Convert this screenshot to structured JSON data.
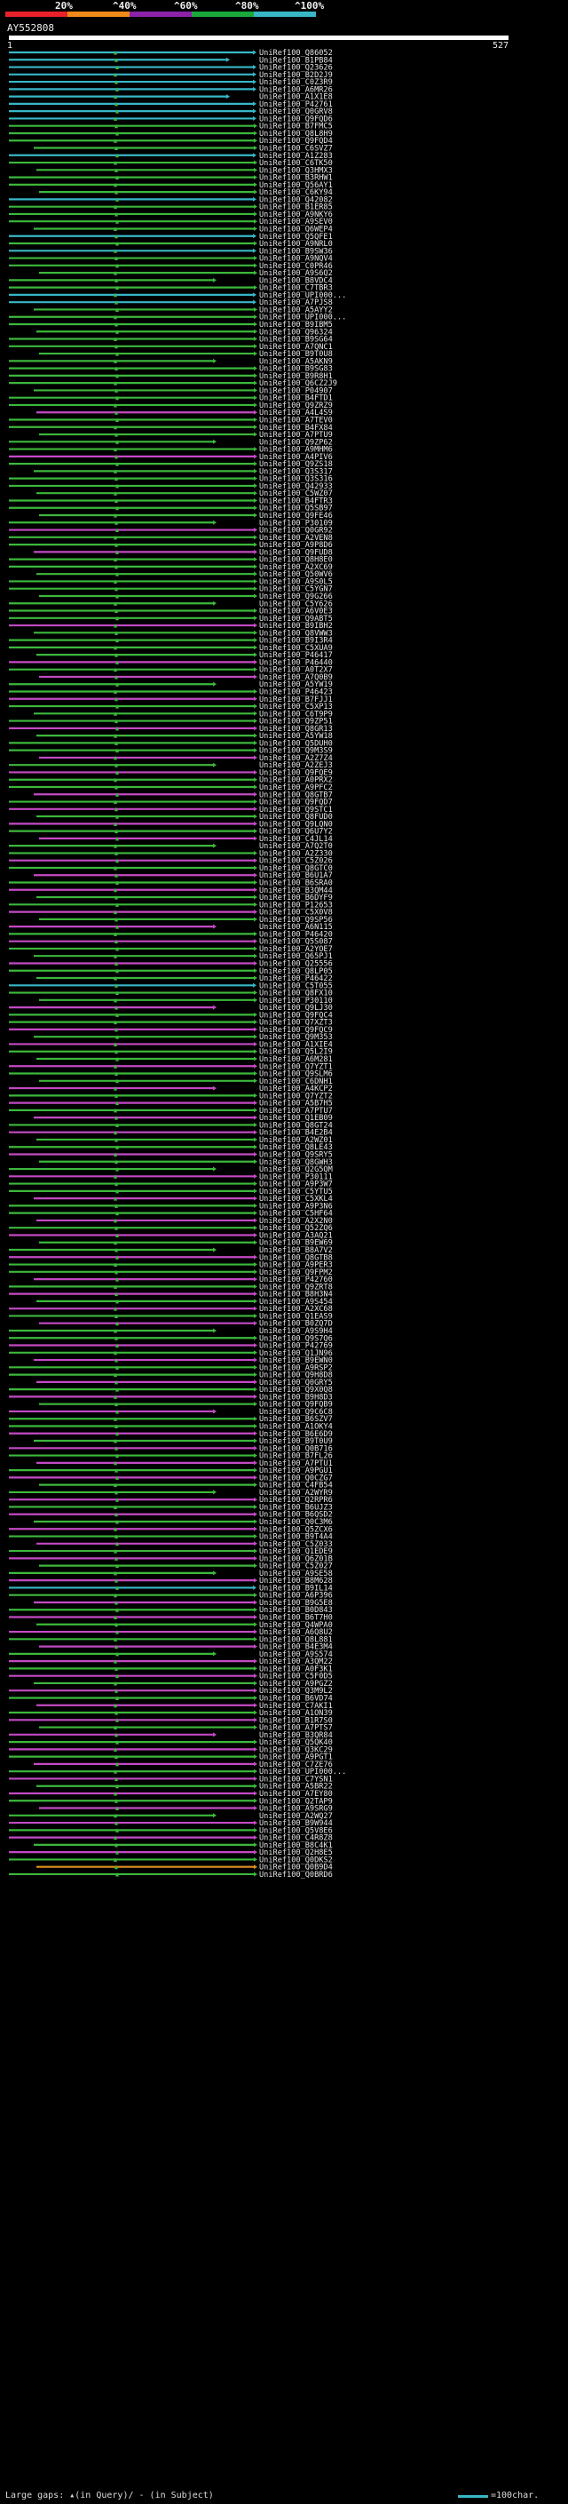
{
  "legend": {
    "ticks": [
      "20%",
      "^40%",
      "^60%",
      "^80%",
      "^100%"
    ],
    "colors": [
      "#e8212b",
      "#f08a18",
      "#8b22a8",
      "#1aa83b",
      "#38b7c7"
    ]
  },
  "query": {
    "name": "AY552808",
    "start": "1",
    "end": "527"
  },
  "colors": {
    "cyan": "#38b7c7",
    "green": "#3cb83c",
    "magenta": "#c44ac4",
    "orange": "#e0901f"
  },
  "hits": [
    {
      "id": "UniRef100_Q86052",
      "c": "cyan"
    },
    {
      "id": "UniRef100_B1PB84",
      "c": "cyan"
    },
    {
      "id": "UniRef100_Q23626",
      "c": "cyan"
    },
    {
      "id": "UniRef100_B2D2J9",
      "c": "cyan"
    },
    {
      "id": "UniRef100_C0Z3R9",
      "c": "cyan"
    },
    {
      "id": "UniRef100_A6MR26",
      "c": "cyan"
    },
    {
      "id": "UniRef100_A1X1E8",
      "c": "cyan"
    },
    {
      "id": "UniRef100_P42761",
      "c": "cyan"
    },
    {
      "id": "UniRef100_Q0GRV8",
      "c": "cyan"
    },
    {
      "id": "UniRef100_Q9FQD6",
      "c": "cyan"
    },
    {
      "id": "UniRef100_B7FMC5",
      "c": "green"
    },
    {
      "id": "UniRef100_Q8L8H9",
      "c": "green"
    },
    {
      "id": "UniRef100_Q9FQD4",
      "c": "green"
    },
    {
      "id": "UniRef100_C6SVZ7",
      "c": "green"
    },
    {
      "id": "UniRef100_A1Z283",
      "c": "cyan"
    },
    {
      "id": "UniRef100_C6TK50",
      "c": "green"
    },
    {
      "id": "UniRef100_Q3HMX3",
      "c": "green"
    },
    {
      "id": "UniRef100_B3RHW1",
      "c": "green"
    },
    {
      "id": "UniRef100_Q56AY1",
      "c": "green"
    },
    {
      "id": "UniRef100_C6KY94",
      "c": "green"
    },
    {
      "id": "UniRef100_Q42082",
      "c": "cyan"
    },
    {
      "id": "UniRef100_B1ER85",
      "c": "green"
    },
    {
      "id": "UniRef100_A9NKY6",
      "c": "green"
    },
    {
      "id": "UniRef100_A9SEV0",
      "c": "green"
    },
    {
      "id": "UniRef100_Q6WEP4",
      "c": "green"
    },
    {
      "id": "UniRef100_Q5QFE1",
      "c": "cyan"
    },
    {
      "id": "UniRef100_A9NRL0",
      "c": "green"
    },
    {
      "id": "UniRef100_B9SW36",
      "c": "cyan"
    },
    {
      "id": "UniRef100_A9NQV4",
      "c": "green"
    },
    {
      "id": "UniRef100_C0PR46",
      "c": "green"
    },
    {
      "id": "UniRef100_A9S6Q2",
      "c": "green"
    },
    {
      "id": "UniRef100_B8VDC4",
      "c": "green"
    },
    {
      "id": "UniRef100_C7TBR3",
      "c": "green"
    },
    {
      "id": "UniRef100_UPI000...",
      "c": "cyan"
    },
    {
      "id": "UniRef100_A7PJS8",
      "c": "cyan"
    },
    {
      "id": "UniRef100_A5AYY2",
      "c": "green"
    },
    {
      "id": "UniRef100_UPI000...",
      "c": "green"
    },
    {
      "id": "UniRef100_B9IBM5",
      "c": "green"
    },
    {
      "id": "UniRef100_Q96324",
      "c": "green"
    },
    {
      "id": "UniRef100_B9SG64",
      "c": "green"
    },
    {
      "id": "UniRef100_A7QNC1",
      "c": "green"
    },
    {
      "id": "UniRef100_B9T0U8",
      "c": "green"
    },
    {
      "id": "UniRef100_A5AKN9",
      "c": "green"
    },
    {
      "id": "UniRef100_B9SG83",
      "c": "green"
    },
    {
      "id": "UniRef100_B9R8H1",
      "c": "green"
    },
    {
      "id": "UniRef100_Q6CZ2J9",
      "c": "green"
    },
    {
      "id": "UniRef100_P04907",
      "c": "green"
    },
    {
      "id": "UniRef100_B4FTD1",
      "c": "green"
    },
    {
      "id": "UniRef100_Q9ZRZ9",
      "c": "green"
    },
    {
      "id": "UniRef100_A4L4S9",
      "c": "magenta"
    },
    {
      "id": "UniRef100_A7TEV0",
      "c": "green"
    },
    {
      "id": "UniRef100_B4FX84",
      "c": "green"
    },
    {
      "id": "UniRef100_A7PTU9",
      "c": "green"
    },
    {
      "id": "UniRef100_Q9ZP62",
      "c": "green"
    },
    {
      "id": "UniRef100_A9MHM6",
      "c": "green"
    },
    {
      "id": "UniRef100_A4PIV6",
      "c": "magenta"
    },
    {
      "id": "UniRef100_Q9ZS18",
      "c": "green"
    },
    {
      "id": "UniRef100_Q3S317",
      "c": "green"
    },
    {
      "id": "UniRef100_Q3S316",
      "c": "green"
    },
    {
      "id": "UniRef100_Q42933",
      "c": "green"
    },
    {
      "id": "UniRef100_C5WZ07",
      "c": "green"
    },
    {
      "id": "UniRef100_B4FTR3",
      "c": "green"
    },
    {
      "id": "UniRef100_Q5SB97",
      "c": "green"
    },
    {
      "id": "UniRef100_Q9FE46",
      "c": "green"
    },
    {
      "id": "UniRef100_P30109",
      "c": "green"
    },
    {
      "id": "UniRef100_Q0GR92",
      "c": "magenta"
    },
    {
      "id": "UniRef100_A2VEN8",
      "c": "green"
    },
    {
      "id": "UniRef100_A9P8D6",
      "c": "green"
    },
    {
      "id": "UniRef100_Q9FUD8",
      "c": "magenta"
    },
    {
      "id": "UniRef100_Q8H8E0",
      "c": "green"
    },
    {
      "id": "UniRef100_A2XC69",
      "c": "green"
    },
    {
      "id": "UniRef100_Q50WV6",
      "c": "green"
    },
    {
      "id": "UniRef100_A9S0L5",
      "c": "green"
    },
    {
      "id": "UniRef100_C5YGN7",
      "c": "green"
    },
    {
      "id": "UniRef100_Q9G266",
      "c": "green"
    },
    {
      "id": "UniRef100_C5Y626",
      "c": "green"
    },
    {
      "id": "UniRef100_A6V0E3",
      "c": "green"
    },
    {
      "id": "UniRef100_Q9ABT5",
      "c": "green"
    },
    {
      "id": "UniRef100_B9IBH2",
      "c": "magenta"
    },
    {
      "id": "UniRef100_Q8VWW3",
      "c": "green"
    },
    {
      "id": "UniRef100_B9I3R4",
      "c": "green"
    },
    {
      "id": "UniRef100_C5XUA9",
      "c": "green"
    },
    {
      "id": "UniRef100_P46417",
      "c": "green"
    },
    {
      "id": "UniRef100_P46440",
      "c": "magenta"
    },
    {
      "id": "UniRef100_A0T2X7",
      "c": "green"
    },
    {
      "id": "UniRef100_A7Q0B9",
      "c": "magenta"
    },
    {
      "id": "UniRef100_A5YW19",
      "c": "green"
    },
    {
      "id": "UniRef100_P46423",
      "c": "green"
    },
    {
      "id": "UniRef100_B7FJJ1",
      "c": "magenta"
    },
    {
      "id": "UniRef100_C5XP13",
      "c": "green"
    },
    {
      "id": "UniRef100_C6T9P9",
      "c": "green"
    },
    {
      "id": "UniRef100_Q9ZP51",
      "c": "green"
    },
    {
      "id": "UniRef100_Q8GR13",
      "c": "magenta"
    },
    {
      "id": "UniRef100_A5YW18",
      "c": "green"
    },
    {
      "id": "UniRef100_Q5DUH0",
      "c": "green"
    },
    {
      "id": "UniRef100_Q9M3S9",
      "c": "green"
    },
    {
      "id": "UniRef100_A2Z7Z4",
      "c": "magenta"
    },
    {
      "id": "UniRef100_A2ZEJ3",
      "c": "green"
    },
    {
      "id": "UniRef100_Q9FQE9",
      "c": "magenta"
    },
    {
      "id": "UniRef100_A0PRX2",
      "c": "green"
    },
    {
      "id": "UniRef100_A9PFC2",
      "c": "green"
    },
    {
      "id": "UniRef100_Q8GTB7",
      "c": "magenta"
    },
    {
      "id": "UniRef100_Q9FQD7",
      "c": "green"
    },
    {
      "id": "UniRef100_Q9STC1",
      "c": "magenta"
    },
    {
      "id": "UniRef100_Q8FUD0",
      "c": "green"
    },
    {
      "id": "UniRef100_Q9LQN0",
      "c": "magenta"
    },
    {
      "id": "UniRef100_Q6U7Y2",
      "c": "green"
    },
    {
      "id": "UniRef100_C4JL14",
      "c": "magenta"
    },
    {
      "id": "UniRef100_A7Q2T0",
      "c": "green"
    },
    {
      "id": "UniRef100_A2Z330",
      "c": "green"
    },
    {
      "id": "UniRef100_C5Z026",
      "c": "magenta"
    },
    {
      "id": "UniRef100_Q8GTC0",
      "c": "green"
    },
    {
      "id": "UniRef100_B6U1A7",
      "c": "magenta"
    },
    {
      "id": "UniRef100_B6SRA0",
      "c": "green"
    },
    {
      "id": "UniRef100_B3QM44",
      "c": "magenta"
    },
    {
      "id": "UniRef100_B6DYF9",
      "c": "green"
    },
    {
      "id": "UniRef100_P12653",
      "c": "green"
    },
    {
      "id": "UniRef100_C5X0V8",
      "c": "magenta"
    },
    {
      "id": "UniRef100_Q9SP56",
      "c": "green"
    },
    {
      "id": "UniRef100_A6N115",
      "c": "magenta"
    },
    {
      "id": "UniRef100_P46420",
      "c": "green"
    },
    {
      "id": "UniRef100_Q5S087",
      "c": "magenta"
    },
    {
      "id": "UniRef100_A2YOE7",
      "c": "green"
    },
    {
      "id": "UniRef100_Q65PJ1",
      "c": "green"
    },
    {
      "id": "UniRef100_Q25556",
      "c": "magenta"
    },
    {
      "id": "UniRef100_Q8LP05",
      "c": "green"
    },
    {
      "id": "UniRef100_P46422",
      "c": "green"
    },
    {
      "id": "UniRef100_C5T055",
      "c": "cyan"
    },
    {
      "id": "UniRef100_Q8FX10",
      "c": "green"
    },
    {
      "id": "UniRef100_P30110",
      "c": "green"
    },
    {
      "id": "UniRef100_Q9LJ30",
      "c": "magenta"
    },
    {
      "id": "UniRef100_Q9FQC4",
      "c": "green"
    },
    {
      "id": "UniRef100_Q7XZT3",
      "c": "green"
    },
    {
      "id": "UniRef100_Q9FQC9",
      "c": "magenta"
    },
    {
      "id": "UniRef100_Q9M353",
      "c": "green"
    },
    {
      "id": "UniRef100_A1XIE4",
      "c": "magenta"
    },
    {
      "id": "UniRef100_Q5L2I9",
      "c": "green"
    },
    {
      "id": "UniRef100_A6M281",
      "c": "green"
    },
    {
      "id": "UniRef100_Q7YZT1",
      "c": "magenta"
    },
    {
      "id": "UniRef100_Q9SLM6",
      "c": "green"
    },
    {
      "id": "UniRef100_C6DNH1",
      "c": "green"
    },
    {
      "id": "UniRef100_A4KCP2",
      "c": "magenta"
    },
    {
      "id": "UniRef100_Q7YZT2",
      "c": "green"
    },
    {
      "id": "UniRef100_A5B7H5",
      "c": "magenta"
    },
    {
      "id": "UniRef100_A7PTU7",
      "c": "green"
    },
    {
      "id": "UniRef100_Q1EB09",
      "c": "magenta"
    },
    {
      "id": "UniRef100_Q8GT24",
      "c": "green"
    },
    {
      "id": "UniRef100_B4E2B4",
      "c": "magenta"
    },
    {
      "id": "UniRef100_A2WZ01",
      "c": "green"
    },
    {
      "id": "UniRef100_Q8LE43",
      "c": "green"
    },
    {
      "id": "UniRef100_Q9SRY5",
      "c": "magenta"
    },
    {
      "id": "UniRef100_Q8GWH3",
      "c": "green"
    },
    {
      "id": "UniRef100_Q2G5QM",
      "c": "green"
    },
    {
      "id": "UniRef100_P30111",
      "c": "magenta"
    },
    {
      "id": "UniRef100_A9P3W7",
      "c": "green"
    },
    {
      "id": "UniRef100_C5YTU5",
      "c": "green"
    },
    {
      "id": "UniRef100_C5XKL4",
      "c": "magenta"
    },
    {
      "id": "UniRef100_A9P3N6",
      "c": "green"
    },
    {
      "id": "UniRef100_C5HF64",
      "c": "green"
    },
    {
      "id": "UniRef100_A2X2N0",
      "c": "magenta"
    },
    {
      "id": "UniRef100_Q52ZQ6",
      "c": "green"
    },
    {
      "id": "UniRef100_A3AQ21",
      "c": "magenta"
    },
    {
      "id": "UniRef100_B9EW69",
      "c": "green"
    },
    {
      "id": "UniRef100_B8A7V2",
      "c": "green"
    },
    {
      "id": "UniRef100_Q8GTB8",
      "c": "magenta"
    },
    {
      "id": "UniRef100_A9PER3",
      "c": "green"
    },
    {
      "id": "UniRef100_Q9FPM2",
      "c": "green"
    },
    {
      "id": "UniRef100_P42760",
      "c": "magenta"
    },
    {
      "id": "UniRef100_Q9ZRT8",
      "c": "green"
    },
    {
      "id": "UniRef100_B8H3N4",
      "c": "magenta"
    },
    {
      "id": "UniRef100_A9S454",
      "c": "green"
    },
    {
      "id": "UniRef100_A2XC68",
      "c": "magenta"
    },
    {
      "id": "UniRef100_Q1EAS9",
      "c": "green"
    },
    {
      "id": "UniRef100_B0ZQ7D",
      "c": "magenta"
    },
    {
      "id": "UniRef100_A9S9H4",
      "c": "green"
    },
    {
      "id": "UniRef100_Q9S7Q6",
      "c": "green"
    },
    {
      "id": "UniRef100_P42769",
      "c": "magenta"
    },
    {
      "id": "UniRef100_Q1JN96",
      "c": "green"
    },
    {
      "id": "UniRef100_B9EWN0",
      "c": "magenta"
    },
    {
      "id": "UniRef100_A9RSP2",
      "c": "green"
    },
    {
      "id": "UniRef100_Q9H8D8",
      "c": "green"
    },
    {
      "id": "UniRef100_Q0GRY5",
      "c": "magenta"
    },
    {
      "id": "UniRef100_Q9X0Q8",
      "c": "green"
    },
    {
      "id": "UniRef100_B9H8D3",
      "c": "magenta"
    },
    {
      "id": "UniRef100_Q9FQB9",
      "c": "green"
    },
    {
      "id": "UniRef100_Q9C6C8",
      "c": "magenta"
    },
    {
      "id": "UniRef100_B6SZV7",
      "c": "green"
    },
    {
      "id": "UniRef100_A1OKY4",
      "c": "green"
    },
    {
      "id": "UniRef100_B6E6D9",
      "c": "magenta"
    },
    {
      "id": "UniRef100_B9T0U9",
      "c": "green"
    },
    {
      "id": "UniRef100_Q0B716",
      "c": "magenta"
    },
    {
      "id": "UniRef100_B7FL26",
      "c": "green"
    },
    {
      "id": "UniRef100_A7PTU1",
      "c": "magenta"
    },
    {
      "id": "UniRef100_A9PGU1",
      "c": "green"
    },
    {
      "id": "UniRef100_Q0CZG7",
      "c": "magenta"
    },
    {
      "id": "UniRef100_C4FB54",
      "c": "green"
    },
    {
      "id": "UniRef100_A2WYR9",
      "c": "green"
    },
    {
      "id": "UniRef100_Q2RPR6",
      "c": "magenta"
    },
    {
      "id": "UniRef100_B6UJZ3",
      "c": "green"
    },
    {
      "id": "UniRef100_B6QSD2",
      "c": "magenta"
    },
    {
      "id": "UniRef100_Q0C3M6",
      "c": "green"
    },
    {
      "id": "UniRef100_Q5ZCX6",
      "c": "magenta"
    },
    {
      "id": "UniRef100_B9T4A4",
      "c": "green"
    },
    {
      "id": "UniRef100_C5Z033",
      "c": "magenta"
    },
    {
      "id": "UniRef100_Q1EDE9",
      "c": "green"
    },
    {
      "id": "UniRef100_Q6Z01B",
      "c": "magenta"
    },
    {
      "id": "UniRef100_C5Z027",
      "c": "green"
    },
    {
      "id": "UniRef100_A9SE58",
      "c": "green"
    },
    {
      "id": "UniRef100_B8M628",
      "c": "magenta"
    },
    {
      "id": "UniRef100_B9IL14",
      "c": "cyan"
    },
    {
      "id": "UniRef100_A6P396",
      "c": "green"
    },
    {
      "id": "UniRef100_B9G5E8",
      "c": "magenta"
    },
    {
      "id": "UniRef100_B0D843",
      "c": "green"
    },
    {
      "id": "UniRef100_B6T7H0",
      "c": "magenta"
    },
    {
      "id": "UniRef100_Q4WPA0",
      "c": "green"
    },
    {
      "id": "UniRef100_A6Q8U2",
      "c": "magenta"
    },
    {
      "id": "UniRef100_Q8L881",
      "c": "green"
    },
    {
      "id": "UniRef100_B4E3M4",
      "c": "magenta"
    },
    {
      "id": "UniRef100_A9S574",
      "c": "green"
    },
    {
      "id": "UniRef100_A3QM22",
      "c": "magenta"
    },
    {
      "id": "UniRef100_A0F3K1",
      "c": "green"
    },
    {
      "id": "UniRef100_C5F0D5",
      "c": "magenta"
    },
    {
      "id": "UniRef100_A9PGZ2",
      "c": "green"
    },
    {
      "id": "UniRef100_Q3M9L2",
      "c": "magenta"
    },
    {
      "id": "UniRef100_B6VD74",
      "c": "green"
    },
    {
      "id": "UniRef100_C7AKI1",
      "c": "magenta"
    },
    {
      "id": "UniRef100_A1ON39",
      "c": "green"
    },
    {
      "id": "UniRef100_B1R7S0",
      "c": "magenta"
    },
    {
      "id": "UniRef100_A7PTS7",
      "c": "green"
    },
    {
      "id": "UniRef100_B3QR84",
      "c": "magenta"
    },
    {
      "id": "UniRef100_Q5QK40",
      "c": "green"
    },
    {
      "id": "UniRef100_Q3KC29",
      "c": "magenta"
    },
    {
      "id": "UniRef100_A9PGT1",
      "c": "green"
    },
    {
      "id": "UniRef100_C7ZE76",
      "c": "magenta"
    },
    {
      "id": "UniRef100_UPI000...",
      "c": "green"
    },
    {
      "id": "UniRef100_C7YSN1",
      "c": "magenta"
    },
    {
      "id": "UniRef100_A5BR22",
      "c": "green"
    },
    {
      "id": "UniRef100_A7EY80",
      "c": "magenta"
    },
    {
      "id": "UniRef100_Q2TAP9",
      "c": "green"
    },
    {
      "id": "UniRef100_A9SRG9",
      "c": "magenta"
    },
    {
      "id": "UniRef100_A2WQ27",
      "c": "green"
    },
    {
      "id": "UniRef100_B9W944",
      "c": "magenta"
    },
    {
      "id": "UniRef100_Q5V8E6",
      "c": "green"
    },
    {
      "id": "UniRef100_C4R8Z8",
      "c": "magenta"
    },
    {
      "id": "UniRef100_B8C4K1",
      "c": "green"
    },
    {
      "id": "UniRef100_Q2H8E5",
      "c": "magenta"
    },
    {
      "id": "UniRef100_Q0DKS2",
      "c": "green"
    },
    {
      "id": "UniRef100_Q0B9D4",
      "c": "orange"
    },
    {
      "id": "UniRef100_Q0BRD6",
      "c": "green"
    }
  ],
  "footer": {
    "gaps_text": "Large gaps: ▴(in Query)/ - (in Subject)",
    "scale_text": "=100char."
  }
}
